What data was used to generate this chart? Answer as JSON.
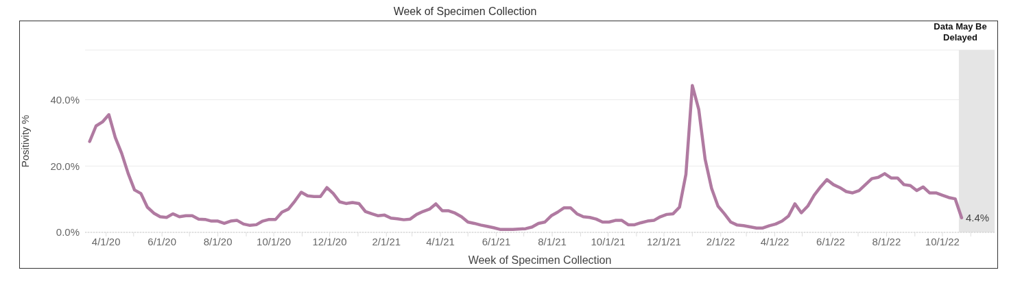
{
  "chart_data": {
    "type": "line",
    "title": "Week of Specimen Collection",
    "xlabel": "Week of Specimen Collection",
    "ylabel": "Positivity %",
    "x": [
      "2020-03-14",
      "2020-03-21",
      "2020-03-28",
      "2020-04-04",
      "2020-04-11",
      "2020-04-18",
      "2020-04-25",
      "2020-05-02",
      "2020-05-09",
      "2020-05-16",
      "2020-05-23",
      "2020-05-30",
      "2020-06-06",
      "2020-06-13",
      "2020-06-20",
      "2020-06-27",
      "2020-07-04",
      "2020-07-11",
      "2020-07-18",
      "2020-07-25",
      "2020-08-01",
      "2020-08-08",
      "2020-08-15",
      "2020-08-22",
      "2020-08-29",
      "2020-09-05",
      "2020-09-12",
      "2020-09-19",
      "2020-09-26",
      "2020-10-03",
      "2020-10-10",
      "2020-10-17",
      "2020-10-24",
      "2020-10-31",
      "2020-11-07",
      "2020-11-14",
      "2020-11-21",
      "2020-11-28",
      "2020-12-05",
      "2020-12-12",
      "2020-12-19",
      "2020-12-26",
      "2021-01-02",
      "2021-01-09",
      "2021-01-16",
      "2021-01-23",
      "2021-01-30",
      "2021-02-06",
      "2021-02-13",
      "2021-02-20",
      "2021-02-27",
      "2021-03-06",
      "2021-03-13",
      "2021-03-20",
      "2021-03-27",
      "2021-04-03",
      "2021-04-10",
      "2021-04-17",
      "2021-04-24",
      "2021-05-01",
      "2021-05-08",
      "2021-05-15",
      "2021-05-22",
      "2021-05-29",
      "2021-06-05",
      "2021-06-12",
      "2021-06-19",
      "2021-07-03",
      "2021-07-10",
      "2021-07-17",
      "2021-07-24",
      "2021-07-31",
      "2021-08-07",
      "2021-08-14",
      "2021-08-21",
      "2021-08-28",
      "2021-09-04",
      "2021-09-11",
      "2021-09-18",
      "2021-09-25",
      "2021-10-02",
      "2021-10-09",
      "2021-10-16",
      "2021-10-23",
      "2021-10-30",
      "2021-11-06",
      "2021-11-13",
      "2021-11-20",
      "2021-11-27",
      "2021-12-04",
      "2021-12-11",
      "2021-12-18",
      "2021-12-25",
      "2022-01-01",
      "2022-01-08",
      "2022-01-15",
      "2022-01-22",
      "2022-01-29",
      "2022-02-05",
      "2022-02-12",
      "2022-02-19",
      "2022-02-26",
      "2022-03-12",
      "2022-03-19",
      "2022-03-26",
      "2022-04-02",
      "2022-04-09",
      "2022-04-16",
      "2022-04-23",
      "2022-04-30",
      "2022-05-07",
      "2022-05-14",
      "2022-05-21",
      "2022-05-28",
      "2022-06-04",
      "2022-06-11",
      "2022-06-18",
      "2022-06-25",
      "2022-07-02",
      "2022-07-09",
      "2022-07-16",
      "2022-07-23",
      "2022-07-30",
      "2022-08-06",
      "2022-08-13",
      "2022-08-20",
      "2022-08-27",
      "2022-09-03",
      "2022-09-10",
      "2022-09-17",
      "2022-09-24",
      "2022-10-01",
      "2022-10-08",
      "2022-10-15",
      "2022-10-22"
    ],
    "series": [
      {
        "color": "#b07aa1",
        "values": [
          27.4,
          32.1,
          33.3,
          35.5,
          28.6,
          23.8,
          17.8,
          12.8,
          11.7,
          7.6,
          5.8,
          4.7,
          4.5,
          5.6,
          4.7,
          5.0,
          5.0,
          4.0,
          3.9,
          3.4,
          3.4,
          2.7,
          3.4,
          3.6,
          2.5,
          2.1,
          2.3,
          3.4,
          3.9,
          3.9,
          6.1,
          7.0,
          9.4,
          12.1,
          11.0,
          10.8,
          10.8,
          13.5,
          11.7,
          9.2,
          8.7,
          9.0,
          8.7,
          6.3,
          5.6,
          5.0,
          5.2,
          4.3,
          4.1,
          3.8,
          4.0,
          5.4,
          6.3,
          7.0,
          8.6,
          6.5,
          6.5,
          5.8,
          4.7,
          3.1,
          2.7,
          2.2,
          1.8,
          1.4,
          0.9,
          0.9,
          0.9,
          1.1,
          1.6,
          2.7,
          3.1,
          5.0,
          6.1,
          7.4,
          7.4,
          5.6,
          4.7,
          4.5,
          4.0,
          3.1,
          3.1,
          3.6,
          3.6,
          2.3,
          2.3,
          2.9,
          3.4,
          3.6,
          4.7,
          5.4,
          5.6,
          7.6,
          17.5,
          44.3,
          37.1,
          22.0,
          13.3,
          7.9,
          5.6,
          3.1,
          2.2,
          2.0,
          1.3,
          1.3,
          2.0,
          2.5,
          3.4,
          4.9,
          8.6,
          5.9,
          7.9,
          11.2,
          13.7,
          15.9,
          14.4,
          13.5,
          12.3,
          11.9,
          12.6,
          14.4,
          16.2,
          16.6,
          17.7,
          16.4,
          16.4,
          14.4,
          14.1,
          12.6,
          13.7,
          11.9,
          11.9,
          11.2,
          10.5,
          10.1,
          4.4
        ]
      }
    ],
    "xlim": [
      "2020-03-09",
      "2022-11-27"
    ],
    "xticks": [
      {
        "value": "2020-04-01",
        "label": "4/1/20"
      },
      {
        "value": "2020-05-01",
        "label": null
      },
      {
        "value": "2020-06-01",
        "label": "6/1/20"
      },
      {
        "value": "2020-07-01",
        "label": null
      },
      {
        "value": "2020-08-01",
        "label": "8/1/20"
      },
      {
        "value": "2020-09-01",
        "label": null
      },
      {
        "value": "2020-10-01",
        "label": "10/1/20"
      },
      {
        "value": "2020-11-01",
        "label": null
      },
      {
        "value": "2020-12-01",
        "label": "12/1/20"
      },
      {
        "value": "2021-01-01",
        "label": null
      },
      {
        "value": "2021-02-01",
        "label": "2/1/21"
      },
      {
        "value": "2021-03-01",
        "label": null
      },
      {
        "value": "2021-04-01",
        "label": "4/1/21"
      },
      {
        "value": "2021-05-01",
        "label": null
      },
      {
        "value": "2021-06-01",
        "label": "6/1/21"
      },
      {
        "value": "2021-07-01",
        "label": null
      },
      {
        "value": "2021-08-01",
        "label": "8/1/21"
      },
      {
        "value": "2021-09-01",
        "label": null
      },
      {
        "value": "2021-10-01",
        "label": "10/1/21"
      },
      {
        "value": "2021-11-01",
        "label": null
      },
      {
        "value": "2021-12-01",
        "label": "12/1/21"
      },
      {
        "value": "2022-01-01",
        "label": null
      },
      {
        "value": "2022-02-01",
        "label": "2/1/22"
      },
      {
        "value": "2022-03-01",
        "label": null
      },
      {
        "value": "2022-04-01",
        "label": "4/1/22"
      },
      {
        "value": "2022-05-01",
        "label": null
      },
      {
        "value": "2022-06-01",
        "label": "6/1/22"
      },
      {
        "value": "2022-07-01",
        "label": null
      },
      {
        "value": "2022-08-01",
        "label": "8/1/22"
      },
      {
        "value": "2022-09-01",
        "label": null
      },
      {
        "value": "2022-10-01",
        "label": "10/1/22"
      },
      {
        "value": "2022-11-01",
        "label": null
      }
    ],
    "ylim": [
      0,
      55
    ],
    "yticks": [
      {
        "value": 0,
        "label": "0.0%"
      },
      {
        "value": 20,
        "label": "20.0%"
      },
      {
        "value": 40,
        "label": "40.0%"
      }
    ],
    "grid": "y",
    "bands": [
      {
        "axis": "x",
        "from": "2022-10-19",
        "to": "2022-11-27",
        "label": "Data May Be Delayed",
        "color": "#e5e5e5"
      }
    ],
    "annotations": [
      {
        "text": "4.4%",
        "x": "2022-10-22",
        "y": 4.4
      }
    ]
  }
}
